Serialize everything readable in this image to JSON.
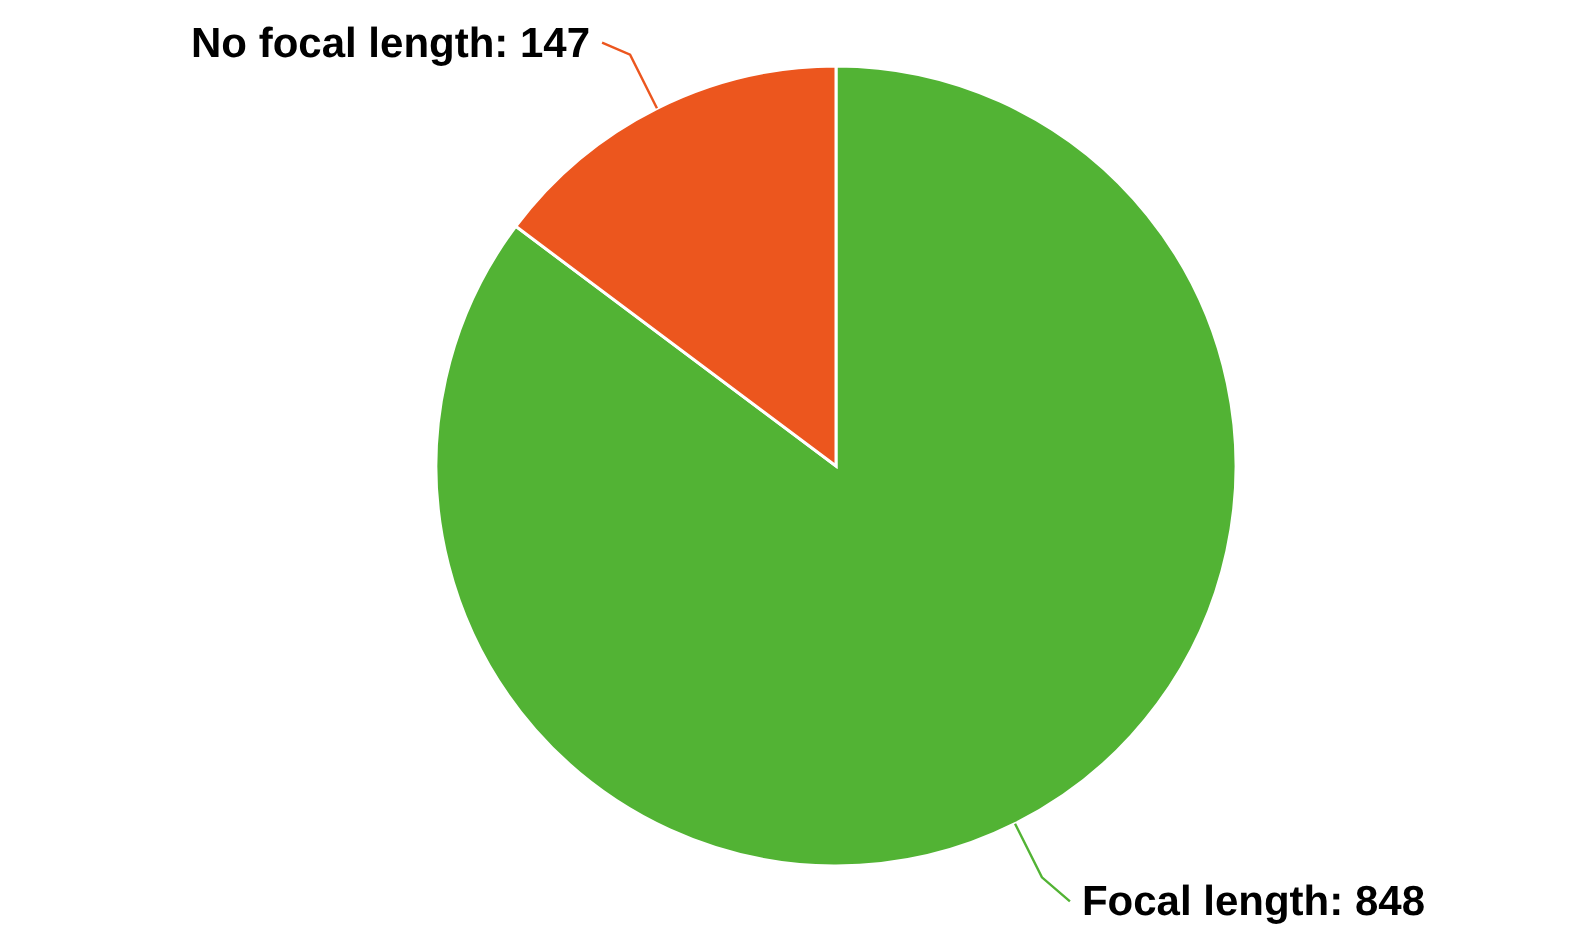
{
  "chart_data": {
    "type": "pie",
    "categories": [
      "Focal length",
      "No focal length"
    ],
    "values": [
      848,
      147
    ],
    "colors": [
      "#52b334",
      "#ec561e"
    ],
    "value_labels": [
      ": 848",
      ": 147"
    ]
  }
}
